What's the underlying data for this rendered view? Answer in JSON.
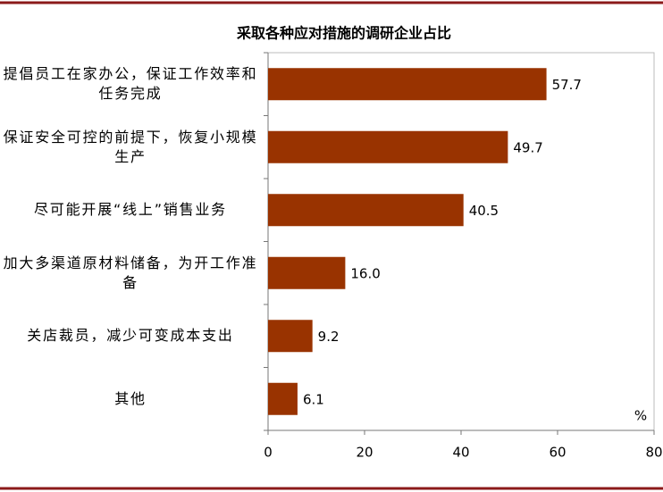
{
  "chart_data": {
    "type": "bar",
    "orientation": "horizontal",
    "title": "采取各种应对措施的调研企业占比",
    "categories": [
      "提倡员工在家办公，保证工作效率和任务完成",
      "保证安全可控的前提下，恢复小规模生产",
      "尽可能开展“线上”销售业务",
      "加大多渠道原材料储备，为开工作准备",
      "关店裁员，减少可变成本支出",
      "其他"
    ],
    "values": [
      57.7,
      49.7,
      40.5,
      16.0,
      9.2,
      6.1
    ],
    "value_labels": [
      "57.7",
      "49.7",
      "40.5",
      "16.0",
      "9.2",
      "6.1"
    ],
    "color": "#993300",
    "unit": "%",
    "xlim": [
      0,
      80
    ],
    "xticks": [
      0,
      20,
      40,
      60,
      80
    ]
  }
}
